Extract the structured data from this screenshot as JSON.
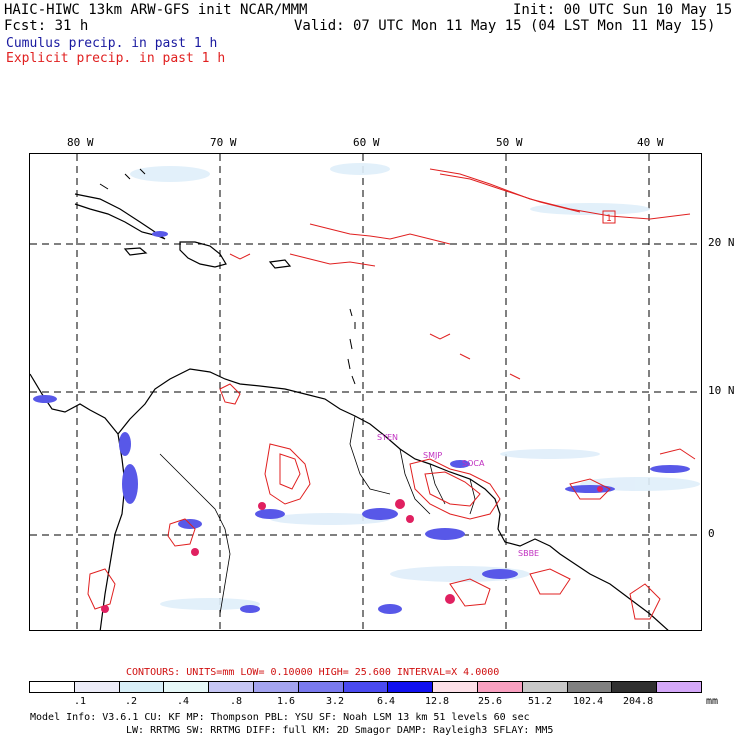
{
  "header": {
    "line1_left": "HAIC-HIWC 13km ARW-GFS init   NCAR/MMM",
    "line1_right": "Init: 00 UTC Sun 10 May 15",
    "line2_left": "Fcst:   31 h",
    "line2_right": "Valid: 07 UTC Mon 11 May 15 (04 LST Mon 11 May 15)",
    "cumulus": "Cumulus precip. in past 1 h",
    "explicit": "Explicit precip. in past 1 h"
  },
  "colors": {
    "cumulus": "#1a1aa0",
    "explicit": "#e02020",
    "coast": "#000000",
    "grid": "#000000",
    "station": "#c030c0"
  },
  "map": {
    "lon_labels": [
      "80 W",
      "70 W",
      "60 W",
      "50 W",
      "40 W"
    ],
    "lat_labels": [
      "20 N",
      "10 N",
      "0"
    ],
    "stations": [
      "SYEN",
      "SMJP",
      "SOCA",
      "SBBE"
    ],
    "high_marker": "1"
  },
  "contour_info": {
    "text": "CONTOURS:  UNITS=mm  LOW= 0.10000      HIGH=  25.600      INTERVAL=X  4.0000"
  },
  "legend": {
    "colors": [
      "#ffffff",
      "#ececf8",
      "#d8eff8",
      "#e6f8f8",
      "#c6c6f4",
      "#a4a4f0",
      "#7a7aee",
      "#4a4af0",
      "#1010f0",
      "#fce0e8",
      "#f8a0c0",
      "#c8c8c8",
      "#808080",
      "#303030",
      "#d4a8f8"
    ],
    "labels": [
      ".1",
      ".2",
      ".4",
      ".8",
      "1.6",
      "3.2",
      "6.4",
      "12.8",
      "25.6",
      "51.2",
      "102.4",
      "204.8"
    ],
    "unit": "mm"
  },
  "model_info": {
    "line1": "Model Info: V3.6.1     CU: KF     MP: Thompson    PBL: YSU       SF: Noah LSM     13 km    51 levels   60 sec",
    "line2": "LW: RRTMG    SW: RRTMG   DIFF: full    KM: 2D Smagor DAMP: Rayleigh3  SFLAY: MM5"
  }
}
